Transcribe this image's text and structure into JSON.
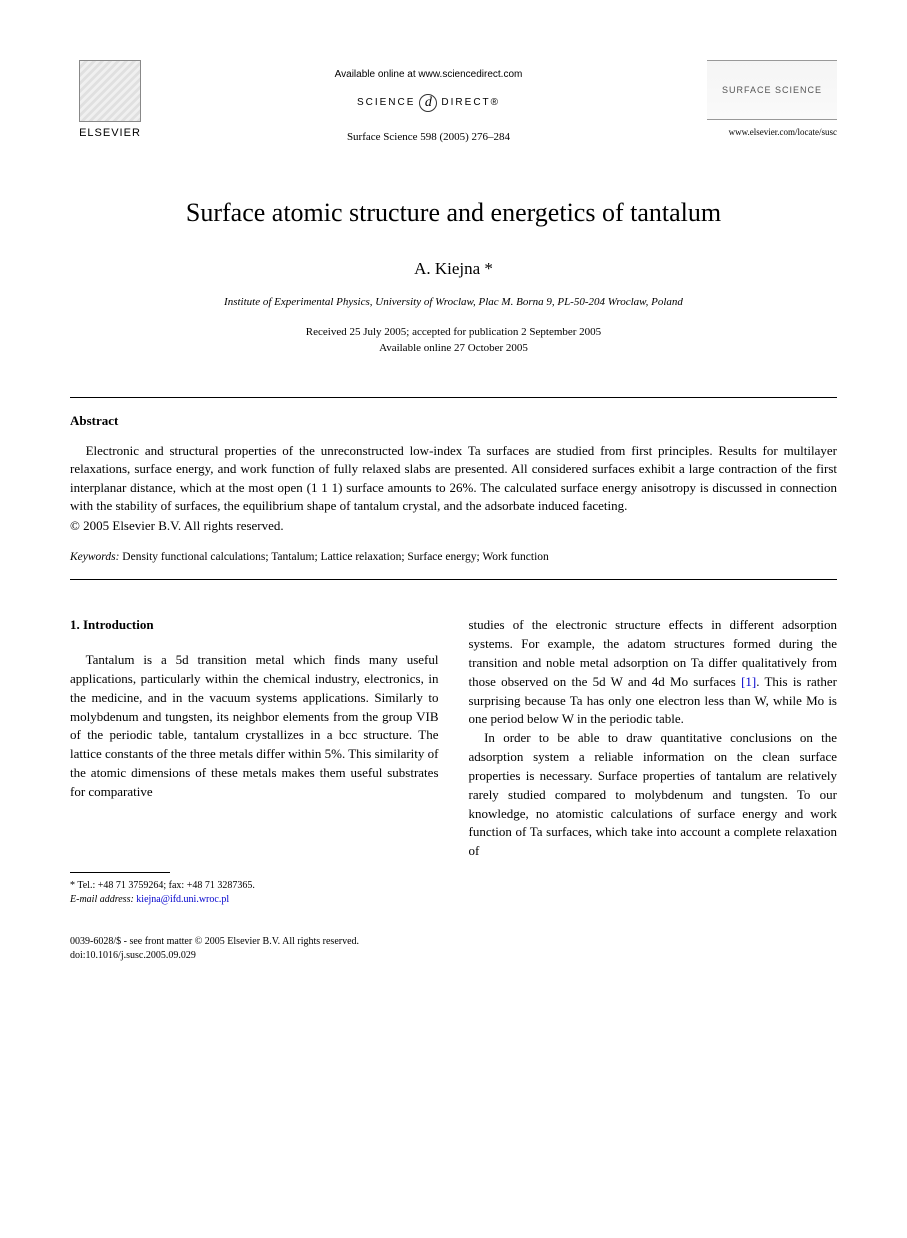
{
  "header": {
    "publisher": "ELSEVIER",
    "available_online": "Available online at www.sciencedirect.com",
    "science_direct_left": "SCIENCE",
    "science_direct_right": "DIRECT®",
    "citation": "Surface Science 598 (2005) 276–284",
    "journal_name": "SURFACE SCIENCE",
    "journal_url": "www.elsevier.com/locate/susc"
  },
  "title": "Surface atomic structure and energetics of tantalum",
  "author": "A. Kiejna *",
  "affiliation": "Institute of Experimental Physics, University of Wroclaw, Plac M. Borna 9, PL-50-204 Wroclaw, Poland",
  "dates": {
    "line1": "Received 25 July 2005; accepted for publication 2 September 2005",
    "line2": "Available online 27 October 2005"
  },
  "abstract": {
    "heading": "Abstract",
    "text": "Electronic and structural properties of the unreconstructed low-index Ta surfaces are studied from first principles. Results for multilayer relaxations, surface energy, and work function of fully relaxed slabs are presented. All considered surfaces exhibit a large contraction of the first interplanar distance, which at the most open (1 1 1) surface amounts to 26%. The calculated surface energy anisotropy is discussed in connection with the stability of surfaces, the equilibrium shape of tantalum crystal, and the adsorbate induced faceting.",
    "copyright": "© 2005 Elsevier B.V. All rights reserved."
  },
  "keywords": {
    "label": "Keywords:",
    "text": " Density functional calculations; Tantalum; Lattice relaxation; Surface energy; Work function"
  },
  "section": {
    "heading": "1. Introduction",
    "col1_p1": "Tantalum is a 5d transition metal which finds many useful applications, particularly within the chemical industry, electronics, in the medicine, and in the vacuum systems applications. Similarly to molybdenum and tungsten, its neighbor elements from the group VIB of the periodic table, tantalum crystallizes in a bcc structure. The lattice constants of the three metals differ within 5%. This similarity of the atomic dimensions of these metals makes them useful substrates for comparative",
    "col2_p1_a": "studies of the electronic structure effects in different adsorption systems. For example, the adatom structures formed during the transition and noble metal adsorption on Ta differ qualitatively from those observed on the 5d W and 4d Mo surfaces ",
    "col2_ref": "[1]",
    "col2_p1_b": ". This is rather surprising because Ta has only one electron less than W, while Mo is one period below W in the periodic table.",
    "col2_p2": "In order to be able to draw quantitative conclusions on the adsorption system a reliable information on the clean surface properties is necessary. Surface properties of tantalum are relatively rarely studied compared to molybdenum and tungsten. To our knowledge, no atomistic calculations of surface energy and work function of Ta surfaces, which take into account a complete relaxation of"
  },
  "footnote": {
    "contact": "* Tel.: +48 71 3759264; fax: +48 71 3287365.",
    "email_label": "E-mail address:",
    "email": "kiejna@ifd.uni.wroc.pl"
  },
  "footer": {
    "line1": "0039-6028/$ - see front matter © 2005 Elsevier B.V. All rights reserved.",
    "line2": "doi:10.1016/j.susc.2005.09.029"
  }
}
